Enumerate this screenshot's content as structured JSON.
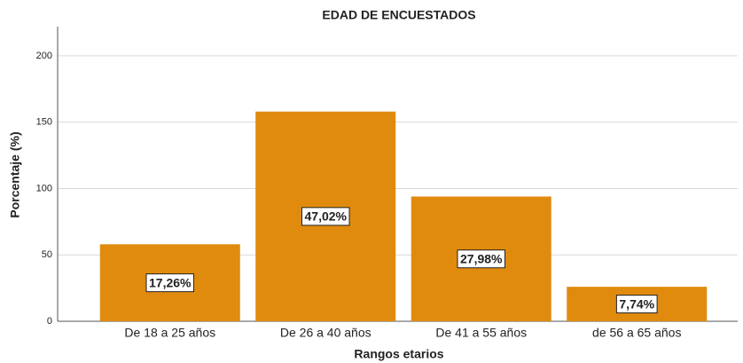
{
  "chart_data": {
    "type": "bar",
    "title": "EDAD DE ENCUESTADOS",
    "x_label": "Rangos etarios",
    "y_label": "Porcentaje (%)",
    "categories": [
      "De 18 a 25 años",
      "De 26 a 40 años",
      "De 41 a 55 años",
      "de 56 a 65 años"
    ],
    "values": [
      58,
      158,
      94,
      26
    ],
    "data_labels": [
      "17,26%",
      "47,02%",
      "27,98%",
      "7,74%"
    ],
    "color": "#e08b0e",
    "ylim": [
      0,
      220
    ],
    "yticks": [
      0,
      50,
      100,
      150,
      200
    ],
    "grid": true
  }
}
